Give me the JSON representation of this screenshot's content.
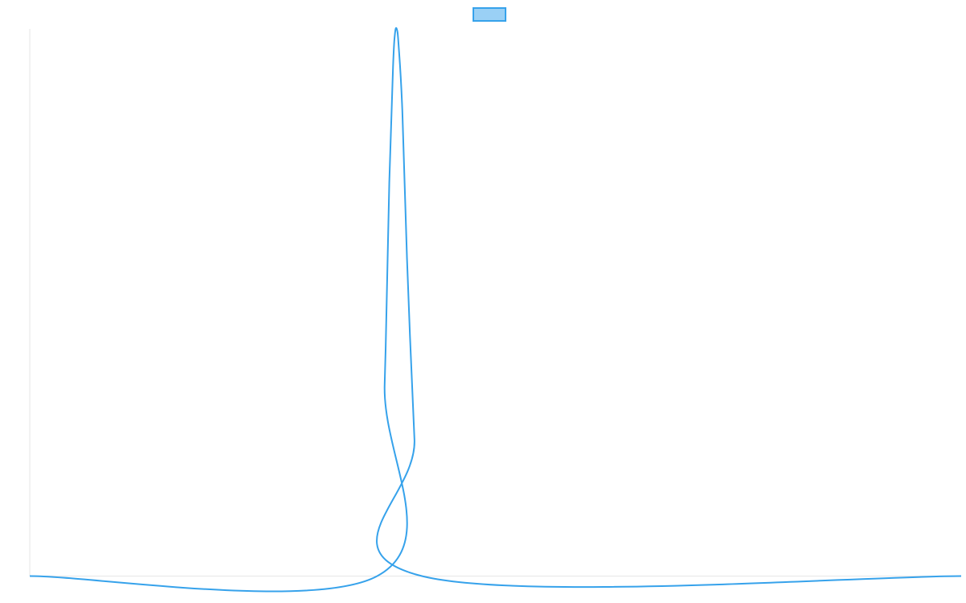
{
  "chart_data": {
    "type": "line",
    "title": "",
    "xlabel": "",
    "ylabel": "",
    "xlim": [
      0,
      100
    ],
    "ylim": [
      0,
      1
    ],
    "grid": false,
    "legend": {
      "position": "top-center",
      "entries": [
        ""
      ]
    },
    "series": [
      {
        "name": "",
        "color": "#36a2eb",
        "fill": "#9ad0f5",
        "x": [
          0,
          37.3,
          38.1,
          38.6,
          39.0,
          39.2,
          39.4,
          39.6,
          40.0,
          40.5,
          41.3,
          42.1,
          100
        ],
        "y": [
          0,
          0,
          0.35,
          0.72,
          0.93,
          0.99,
          1.0,
          0.97,
          0.85,
          0.58,
          0.25,
          0,
          0
        ]
      }
    ]
  }
}
